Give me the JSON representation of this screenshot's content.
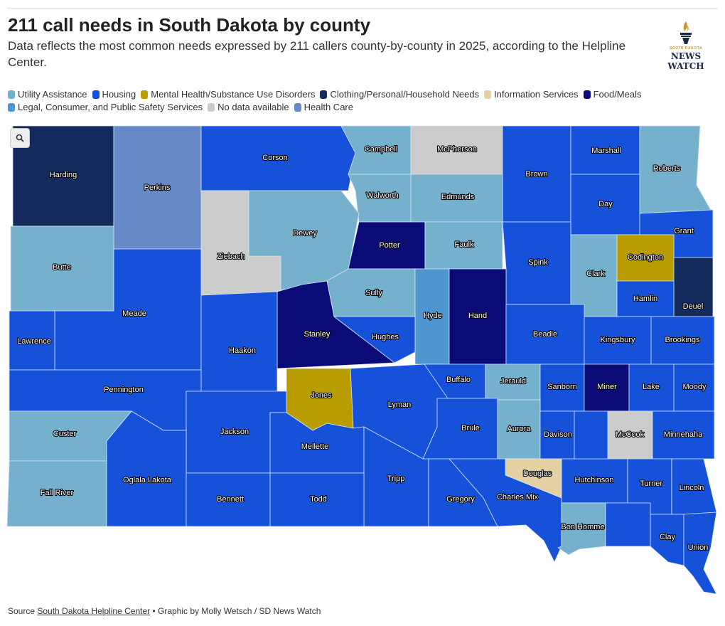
{
  "header": {
    "title": "211 call needs in South Dakota by county",
    "subtitle": "Data reflects the most common needs expressed by 211 callers county-by-county in 2025, according to the Helpline Center.",
    "logo": {
      "top": "SOUTH DAKOTA",
      "line1": "NEWS",
      "line2": "WATCH"
    }
  },
  "legend": [
    {
      "key": "utility",
      "label": "Utility Assistance",
      "color": "#75b0cc"
    },
    {
      "key": "housing",
      "label": "Housing",
      "color": "#1652d9"
    },
    {
      "key": "mental",
      "label": "Mental Health/Substance Use Disorders",
      "color": "#b89c00"
    },
    {
      "key": "clothing",
      "label": "Clothing/Personal/Household Needs",
      "color": "#142a5c"
    },
    {
      "key": "info",
      "label": "Information Services",
      "color": "#e3d0a3"
    },
    {
      "key": "food",
      "label": "Food/Meals",
      "color": "#0b0b78"
    },
    {
      "key": "legal",
      "label": "Legal, Consumer, and Public Safety Services",
      "color": "#4f95cf"
    },
    {
      "key": "nodata",
      "label": "No data available",
      "color": "#cccccc"
    },
    {
      "key": "health",
      "label": "Health Care",
      "color": "#6689c7"
    }
  ],
  "map": {
    "search_icon": "search-icon"
  },
  "counties": [
    {
      "name": "Harding",
      "need": "clothing"
    },
    {
      "name": "Perkins",
      "need": "health"
    },
    {
      "name": "Corson",
      "need": "housing"
    },
    {
      "name": "Campbell",
      "need": "utility"
    },
    {
      "name": "McPherson",
      "need": "nodata"
    },
    {
      "name": "Brown",
      "need": "housing"
    },
    {
      "name": "Marshall",
      "need": "housing"
    },
    {
      "name": "Roberts",
      "need": "utility"
    },
    {
      "name": "Walworth",
      "need": "utility"
    },
    {
      "name": "Edmunds",
      "need": "utility"
    },
    {
      "name": "Day",
      "need": "housing"
    },
    {
      "name": "Grant",
      "need": "housing"
    },
    {
      "name": "Butte",
      "need": "utility"
    },
    {
      "name": "Ziebach",
      "need": "nodata"
    },
    {
      "name": "Dewey",
      "need": "utility"
    },
    {
      "name": "Potter",
      "need": "food"
    },
    {
      "name": "Faulk",
      "need": "utility"
    },
    {
      "name": "Spink",
      "need": "housing"
    },
    {
      "name": "Clark",
      "need": "utility"
    },
    {
      "name": "Codington",
      "need": "mental"
    },
    {
      "name": "Deuel",
      "need": "clothing"
    },
    {
      "name": "Meade",
      "need": "housing"
    },
    {
      "name": "Sully",
      "need": "utility"
    },
    {
      "name": "Hyde",
      "need": "legal"
    },
    {
      "name": "Hand",
      "need": "food"
    },
    {
      "name": "Hamlin",
      "need": "housing"
    },
    {
      "name": "Lawrence",
      "need": "housing"
    },
    {
      "name": "Stanley",
      "need": "food"
    },
    {
      "name": "Hughes",
      "need": "housing"
    },
    {
      "name": "Beadle",
      "need": "housing"
    },
    {
      "name": "Kingsbury",
      "need": "housing"
    },
    {
      "name": "Brookings",
      "need": "housing"
    },
    {
      "name": "Haakon",
      "need": "housing"
    },
    {
      "name": "Pennington",
      "need": "housing"
    },
    {
      "name": "Buffalo",
      "need": "housing"
    },
    {
      "name": "Jerauld",
      "need": "utility"
    },
    {
      "name": "Sanborn",
      "need": "housing"
    },
    {
      "name": "Miner",
      "need": "food"
    },
    {
      "name": "Lake",
      "need": "housing"
    },
    {
      "name": "Moody",
      "need": "housing"
    },
    {
      "name": "Jones",
      "need": "mental"
    },
    {
      "name": "Lyman",
      "need": "housing"
    },
    {
      "name": "Custer",
      "need": "utility"
    },
    {
      "name": "Jackson",
      "need": "housing"
    },
    {
      "name": "Brule",
      "need": "housing"
    },
    {
      "name": "Aurora",
      "need": "utility"
    },
    {
      "name": "Davison",
      "need": "housing"
    },
    {
      "name": "McCook",
      "need": "nodata"
    },
    {
      "name": "Minnehaha",
      "need": "housing"
    },
    {
      "name": "Mellette",
      "need": "housing"
    },
    {
      "name": "Oglala Lakota",
      "need": "housing"
    },
    {
      "name": "Douglas",
      "need": "info"
    },
    {
      "name": "Fall River",
      "need": "utility"
    },
    {
      "name": "Tripp",
      "need": "housing"
    },
    {
      "name": "Hutchinson",
      "need": "housing"
    },
    {
      "name": "Turner",
      "need": "housing"
    },
    {
      "name": "Lincoln",
      "need": "housing"
    },
    {
      "name": "Bennett",
      "need": "housing"
    },
    {
      "name": "Todd",
      "need": "housing"
    },
    {
      "name": "Gregory",
      "need": "housing"
    },
    {
      "name": "Charles Mix",
      "need": "housing"
    },
    {
      "name": "Bon Homme",
      "need": "utility"
    },
    {
      "name": "Clay",
      "need": "housing"
    },
    {
      "name": "Union",
      "need": "housing"
    }
  ],
  "unlabeled_counties": [
    {
      "id": "u1",
      "need": "housing"
    },
    {
      "id": "u2",
      "need": "housing"
    }
  ],
  "footer": {
    "source_prefix": "Source ",
    "source_link": "South Dakota Helpline Center",
    "credit": " • Graphic by Molly Wetsch / SD News Watch"
  }
}
